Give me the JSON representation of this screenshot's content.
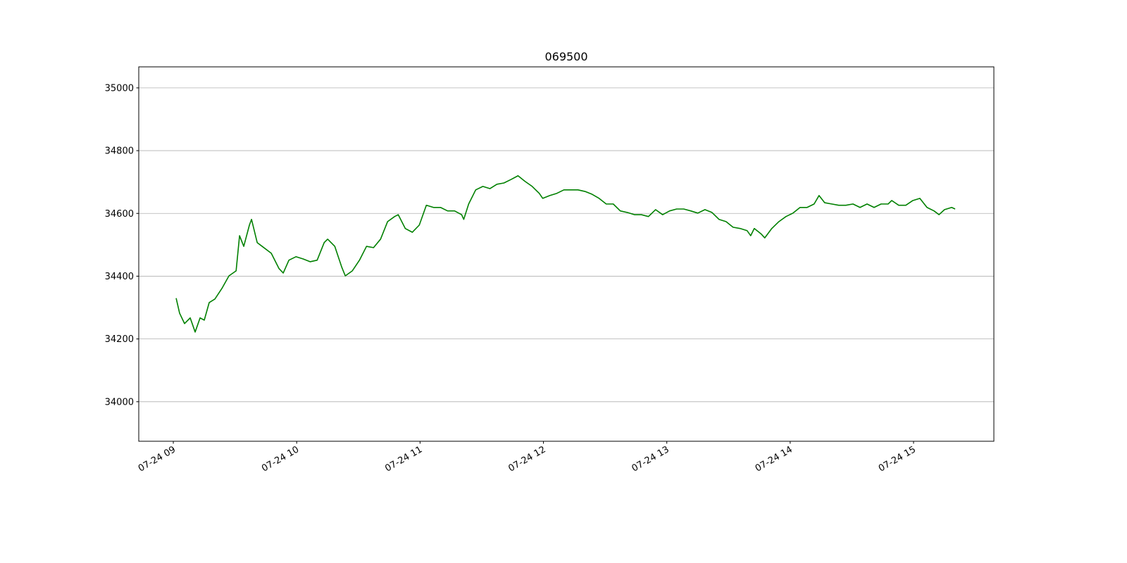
{
  "chart_data": {
    "type": "line",
    "title": "069500",
    "color": "#008000",
    "grid": true,
    "x": [
      9.023,
      9.051,
      9.091,
      9.137,
      9.177,
      9.217,
      9.251,
      9.291,
      9.337,
      9.394,
      9.451,
      9.509,
      9.537,
      9.571,
      9.617,
      9.634,
      9.68,
      9.72,
      9.794,
      9.857,
      9.891,
      9.937,
      9.994,
      10.051,
      10.109,
      10.166,
      10.223,
      10.251,
      10.309,
      10.366,
      10.394,
      10.451,
      10.509,
      10.566,
      10.623,
      10.68,
      10.737,
      10.794,
      10.823,
      10.88,
      10.937,
      10.994,
      11.051,
      11.109,
      11.166,
      11.223,
      11.28,
      11.337,
      11.354,
      11.394,
      11.451,
      11.509,
      11.566,
      11.623,
      11.68,
      11.737,
      11.794,
      11.851,
      11.909,
      11.966,
      11.994,
      12.051,
      12.109,
      12.166,
      12.223,
      12.28,
      12.337,
      12.394,
      12.451,
      12.509,
      12.566,
      12.623,
      12.68,
      12.737,
      12.794,
      12.851,
      12.909,
      12.966,
      13.023,
      13.08,
      13.137,
      13.194,
      13.251,
      13.309,
      13.366,
      13.423,
      13.48,
      13.537,
      13.594,
      13.651,
      13.68,
      13.709,
      13.766,
      13.794,
      13.851,
      13.909,
      13.966,
      14.023,
      14.08,
      14.137,
      14.194,
      14.234,
      14.28,
      14.337,
      14.394,
      14.451,
      14.509,
      14.566,
      14.623,
      14.68,
      14.737,
      14.794,
      14.823,
      14.88,
      14.937,
      14.994,
      15.051,
      15.109,
      15.166,
      15.206,
      15.251,
      15.309,
      15.337
    ],
    "values": [
      34330,
      34282,
      34249,
      34267,
      34222,
      34267,
      34260,
      34316,
      34327,
      34361,
      34401,
      34417,
      34529,
      34495,
      34563,
      34581,
      34507,
      34495,
      34473,
      34424,
      34410,
      34451,
      34462,
      34455,
      34446,
      34451,
      34507,
      34518,
      34495,
      34428,
      34401,
      34417,
      34451,
      34495,
      34491,
      34518,
      34574,
      34590,
      34596,
      34552,
      34540,
      34563,
      34626,
      34619,
      34619,
      34608,
      34608,
      34596,
      34581,
      34630,
      34675,
      34686,
      34679,
      34693,
      34697,
      34708,
      34720,
      34702,
      34686,
      34664,
      34648,
      34657,
      34664,
      34675,
      34675,
      34675,
      34670,
      34661,
      34648,
      34630,
      34630,
      34608,
      34603,
      34596,
      34596,
      34590,
      34612,
      34596,
      34608,
      34614,
      34614,
      34608,
      34601,
      34612,
      34603,
      34581,
      34574,
      34556,
      34552,
      34545,
      34529,
      34552,
      34534,
      34522,
      34552,
      34574,
      34590,
      34601,
      34619,
      34619,
      34630,
      34657,
      34634,
      34630,
      34626,
      34626,
      34630,
      34619,
      34630,
      34619,
      34630,
      34630,
      34641,
      34626,
      34626,
      34641,
      34648,
      34619,
      34608,
      34596,
      34612,
      34619,
      34614
    ],
    "xlim": [
      8.72,
      15.651
    ],
    "ylim": [
      33874,
      35067
    ],
    "xticks": [
      {
        "value": 9,
        "label": "07-24 09"
      },
      {
        "value": 10,
        "label": "07-24 10"
      },
      {
        "value": 11,
        "label": "07-24 11"
      },
      {
        "value": 12,
        "label": "07-24 12"
      },
      {
        "value": 13,
        "label": "07-24 13"
      },
      {
        "value": 14,
        "label": "07-24 14"
      },
      {
        "value": 15,
        "label": "07-24 15"
      }
    ],
    "yticks": [
      34000,
      34200,
      34400,
      34600,
      34800,
      35000
    ]
  }
}
